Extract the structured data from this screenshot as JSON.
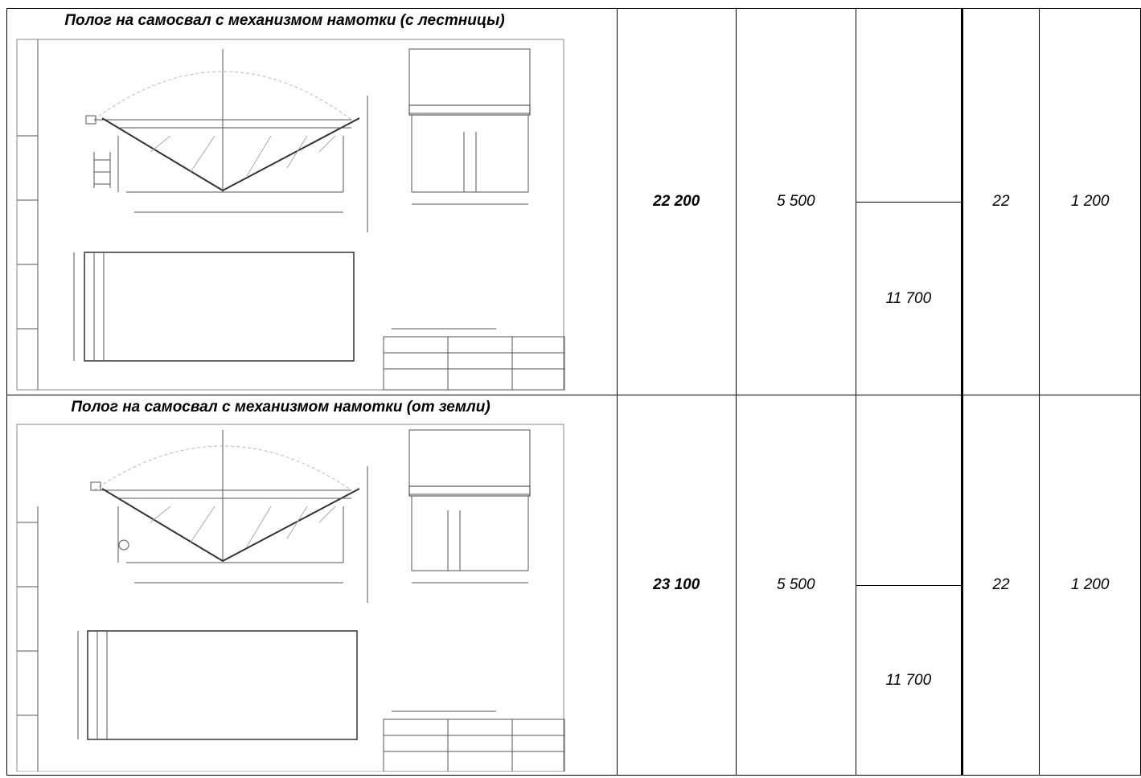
{
  "rows": [
    {
      "title": "Полог на самосвал с механизмом намотки (с лестницы)",
      "price": "22 200",
      "col2": "5 500",
      "col3_bottom": "11 700",
      "col4": "22",
      "col5": "1 200"
    },
    {
      "title": "Полог на самосвал с механизмом намотки (от земли)",
      "price": "23 100",
      "col2": "5 500",
      "col3_bottom": "11 700",
      "col4": "22",
      "col5": "1 200"
    }
  ]
}
